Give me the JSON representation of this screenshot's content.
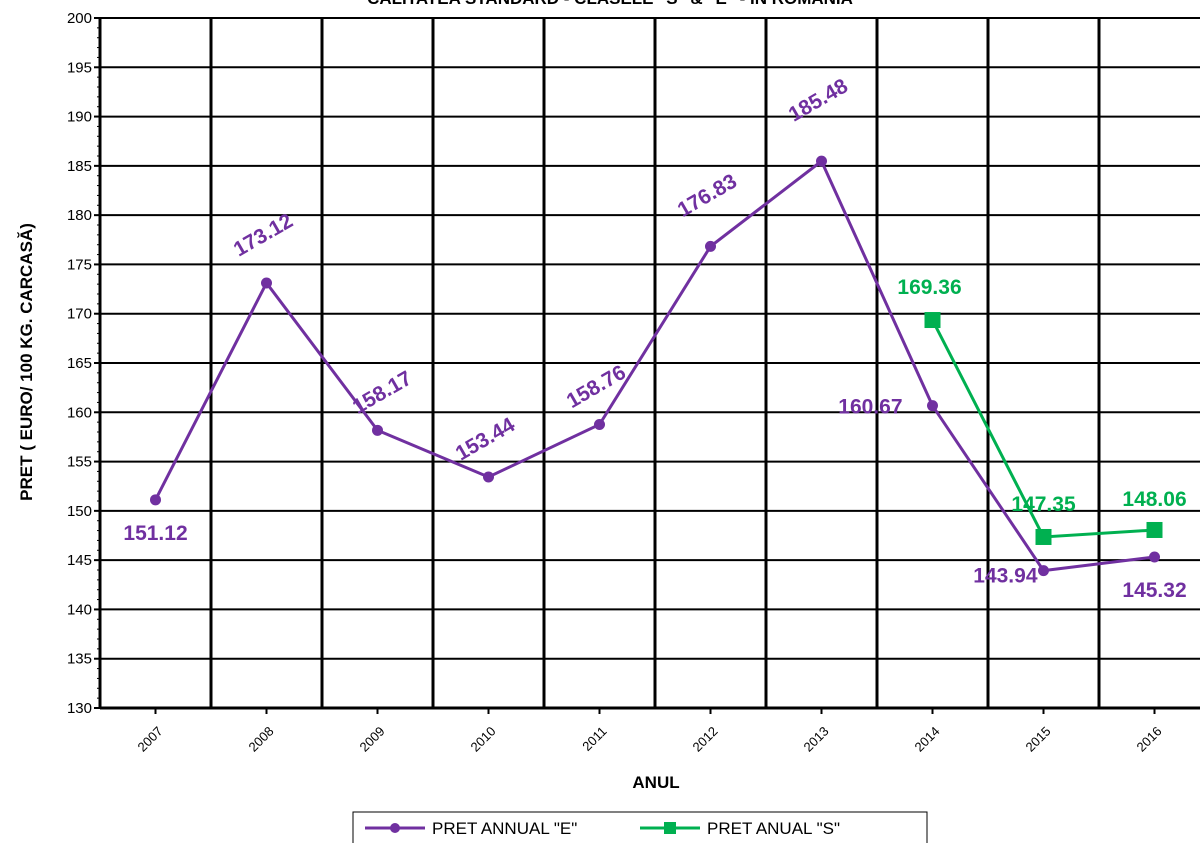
{
  "chart_data": {
    "type": "line",
    "title": "CALITATEA STANDARD - CLASELE \"S\" & \"E\" - IN ROMANIA",
    "xlabel": "ANUL",
    "ylabel": "PRET ( EURO/ 100 KG. CARCASĂ)",
    "ylim": [
      130,
      200
    ],
    "ytick_step": 5,
    "categories": [
      "2007",
      "2008",
      "2009",
      "2010",
      "2011",
      "2012",
      "2013",
      "2014",
      "2015",
      "2016"
    ],
    "grid": true,
    "legend_position": "bottom",
    "series": [
      {
        "name": "PRET ANNUAL \"E\"",
        "color": "#7030a0",
        "marker": "circle",
        "values": [
          151.12,
          173.12,
          158.17,
          153.44,
          158.76,
          176.83,
          185.48,
          160.67,
          143.94,
          145.32
        ],
        "labels": [
          "151.12",
          "173.12",
          "158.17",
          "153.44",
          "158.76",
          "176.83",
          "185.48",
          "160.67",
          "143.94",
          "145.32"
        ]
      },
      {
        "name": "PRET ANUAL \"S\"",
        "color": "#00b050",
        "marker": "square",
        "values": [
          null,
          null,
          null,
          null,
          null,
          null,
          null,
          169.36,
          147.35,
          148.06
        ],
        "labels": [
          "",
          "",
          "",
          "",
          "",
          "",
          "",
          "169.36",
          "147.35",
          "148.06"
        ]
      }
    ]
  }
}
